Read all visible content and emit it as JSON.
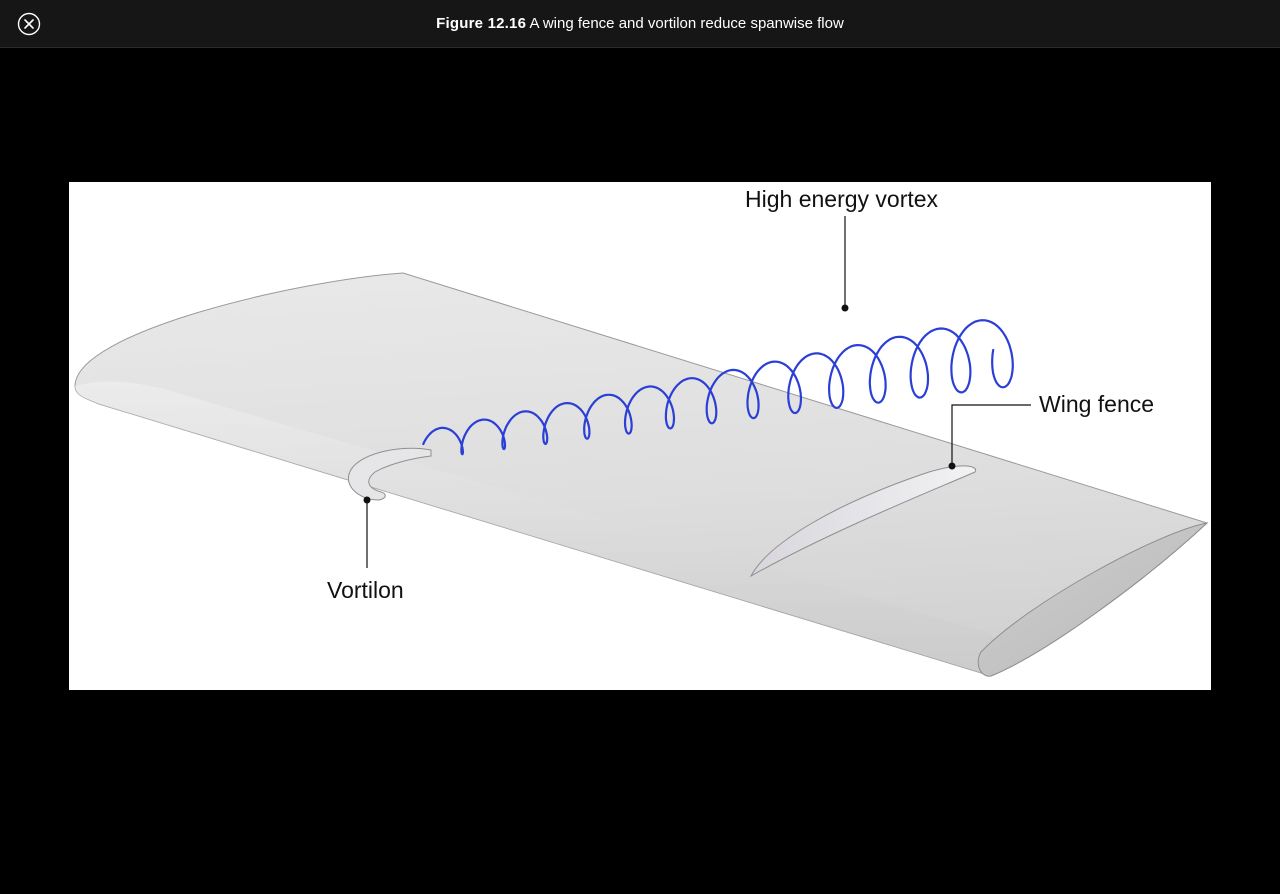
{
  "header": {
    "figure_number": "Figure 12.16",
    "caption": "A wing fence and vortilon reduce spanwise flow"
  },
  "close_button": {
    "icon": "close-icon"
  },
  "figure": {
    "labels": {
      "vortex": "High energy vortex",
      "fence": "Wing fence",
      "vortilon": "Vortilon"
    },
    "colors": {
      "background": "#000000",
      "header_bar": "#161616",
      "wing_surface": "#e2e2e2",
      "vortex": "#2b3fd6"
    }
  }
}
